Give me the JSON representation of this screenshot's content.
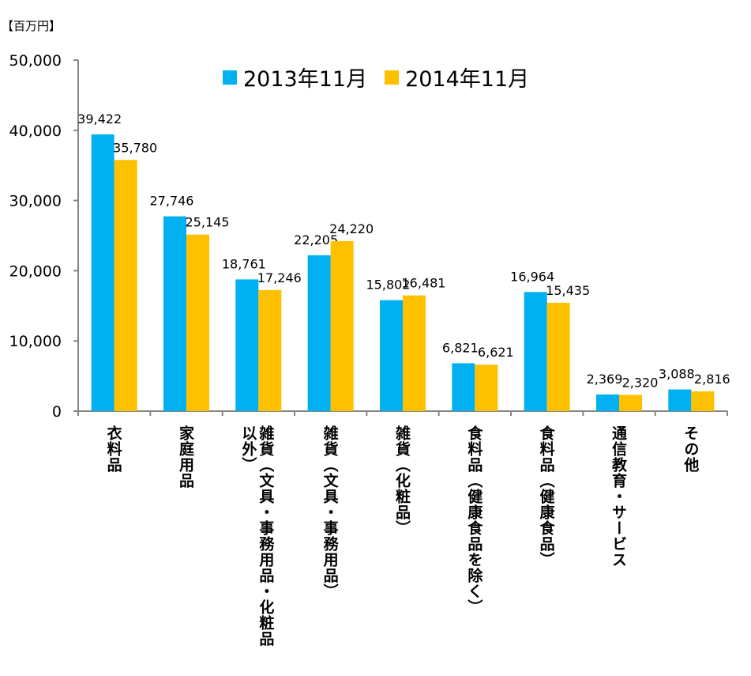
{
  "chart_data": {
    "type": "bar",
    "title": "",
    "unit_label": "【百万円】",
    "xlabel": "",
    "ylabel": "",
    "ylim": [
      0,
      50000
    ],
    "yticks": [
      0,
      10000,
      20000,
      30000,
      40000,
      50000
    ],
    "ytick_labels": [
      "0",
      "10,000",
      "20,000",
      "30,000",
      "40,000",
      "50,000"
    ],
    "grid": false,
    "legend_position": "top-center",
    "categories": [
      "衣料品",
      "家庭用品",
      "雑貨（文具・事務用品・化粧品以外）",
      "雑貨（文具・事務用品）",
      "雑貨（化粧品）",
      "食料品（健康食品を除く）",
      "食料品（健康食品）",
      "通信教育・サービス",
      "その他"
    ],
    "series": [
      {
        "name": "2013年11月",
        "color": "#00B0F0",
        "values": [
          39422,
          27746,
          18761,
          22205,
          15802,
          6821,
          16964,
          2369,
          3088
        ],
        "labels": [
          "39,422",
          "27,746",
          "18,761",
          "22,205",
          "15,802",
          "6,821",
          "16,964",
          "2,369",
          "3,088"
        ]
      },
      {
        "name": "2014年11月",
        "color": "#FFC000",
        "values": [
          35780,
          25145,
          17246,
          24220,
          16481,
          6621,
          15435,
          2320,
          2816
        ],
        "labels": [
          "35,780",
          "25,145",
          "17,246",
          "24,220",
          "16,481",
          "6,621",
          "15,435",
          "2,320",
          "2,816"
        ]
      }
    ]
  }
}
